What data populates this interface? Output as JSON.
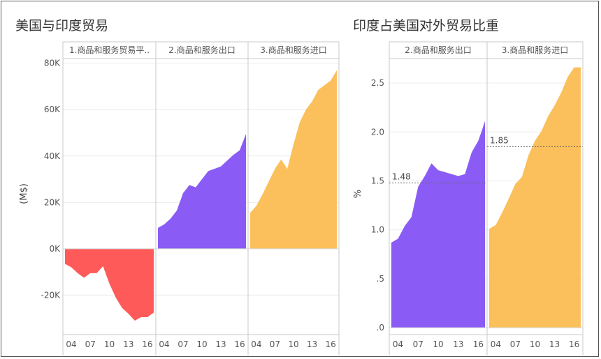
{
  "chart_data": [
    {
      "type": "area",
      "title": "美国与印度贸易",
      "xlabel": "",
      "ylabel": "(M$)",
      "ylim": [
        -37000,
        82000
      ],
      "yticks": [
        80000,
        60000,
        40000,
        20000,
        0,
        -20000
      ],
      "ytick_labels": [
        "80K",
        "60K",
        "40K",
        "20K",
        "0K",
        "-20K"
      ],
      "grid": true,
      "panels": [
        {
          "name": "1.商品和服务贸易平..",
          "color": "#ff5a5a",
          "xticks": [
            "04",
            "07",
            "10",
            "13",
            "16"
          ],
          "x": [
            2003,
            2004,
            2005,
            2006,
            2007,
            2008,
            2009,
            2010,
            2011,
            2012,
            2013,
            2014,
            2015,
            2016,
            2017
          ],
          "values": [
            -6500,
            -8000,
            -10500,
            -12500,
            -10500,
            -10500,
            -7500,
            -15000,
            -21000,
            -25500,
            -28000,
            -31000,
            -29500,
            -29500,
            -27500
          ]
        },
        {
          "name": "2.商品和服务出口",
          "color": "#8a5cf5",
          "xticks": [
            "04",
            "07",
            "10",
            "13",
            "16"
          ],
          "x": [
            2003,
            2004,
            2005,
            2006,
            2007,
            2008,
            2009,
            2010,
            2011,
            2012,
            2013,
            2014,
            2015,
            2016,
            2017
          ],
          "values": [
            9000,
            10500,
            13000,
            16500,
            24000,
            27500,
            26500,
            30000,
            33500,
            34500,
            35500,
            38000,
            40500,
            42500,
            49500
          ]
        },
        {
          "name": "3.商品和服务进口",
          "color": "#fbc05b",
          "xticks": [
            "04",
            "07",
            "10",
            "13",
            "16"
          ],
          "x": [
            2003,
            2004,
            2005,
            2006,
            2007,
            2008,
            2009,
            2010,
            2011,
            2012,
            2013,
            2014,
            2015,
            2016,
            2017
          ],
          "values": [
            15500,
            18500,
            23500,
            29000,
            34500,
            38500,
            34500,
            45000,
            54500,
            60000,
            63500,
            68500,
            70500,
            72500,
            77000
          ]
        }
      ]
    },
    {
      "type": "area",
      "title": "印度占美国对外贸易比重",
      "xlabel": "",
      "ylabel": "%",
      "ylim": [
        -0.07,
        2.75
      ],
      "yticks": [
        2.5,
        2.0,
        1.5,
        1.0,
        0.5,
        0.0
      ],
      "ytick_labels": [
        "2.5",
        "2.0",
        "1.5",
        "1.0",
        ".5",
        ".0"
      ],
      "grid": true,
      "panels": [
        {
          "name": "2.商品和服务出口",
          "color": "#8a5cf5",
          "average": 1.48,
          "average_label": "1.48",
          "xticks": [
            "04",
            "07",
            "10",
            "13",
            "16"
          ],
          "x": [
            2003,
            2004,
            2005,
            2006,
            2007,
            2008,
            2009,
            2010,
            2011,
            2012,
            2013,
            2014,
            2015,
            2016,
            2017
          ],
          "values": [
            0.87,
            0.91,
            1.04,
            1.13,
            1.44,
            1.55,
            1.68,
            1.61,
            1.59,
            1.57,
            1.55,
            1.57,
            1.79,
            1.91,
            2.11
          ]
        },
        {
          "name": "3.商品和服务进口",
          "color": "#fbc05b",
          "average": 1.85,
          "average_label": "1.85",
          "xticks": [
            "04",
            "07",
            "10",
            "13",
            "16"
          ],
          "x": [
            2003,
            2004,
            2005,
            2006,
            2007,
            2008,
            2009,
            2010,
            2011,
            2012,
            2013,
            2014,
            2015,
            2016,
            2017
          ],
          "values": [
            1.01,
            1.05,
            1.18,
            1.32,
            1.47,
            1.54,
            1.76,
            1.91,
            2.01,
            2.16,
            2.27,
            2.4,
            2.56,
            2.66,
            2.66
          ]
        }
      ]
    }
  ]
}
